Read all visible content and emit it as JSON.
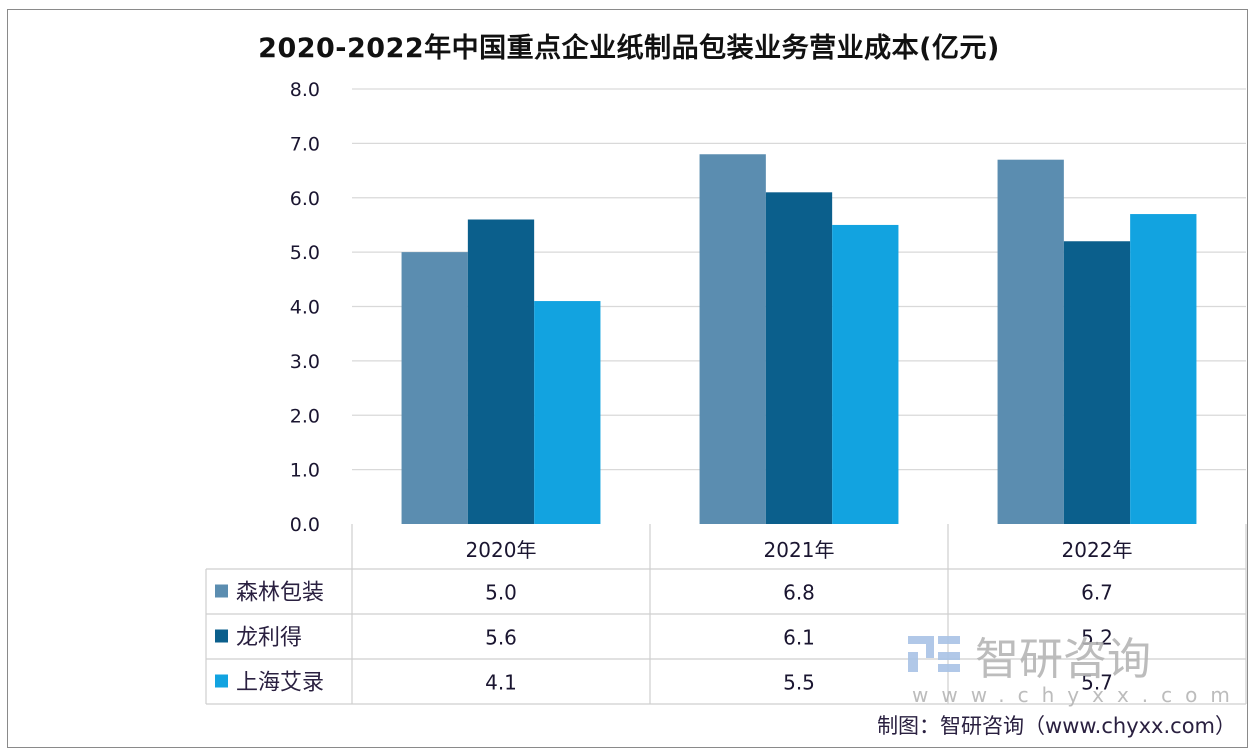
{
  "chart_data": {
    "type": "bar",
    "title": "2020-2022年中国重点企业纸制品包装业务营业成本(亿元)",
    "xlabel": "",
    "ylabel": "",
    "ylim": [
      0,
      8
    ],
    "yticks": [
      "0.0",
      "1.0",
      "2.0",
      "3.0",
      "4.0",
      "5.0",
      "6.0",
      "7.0",
      "8.0"
    ],
    "grid": true,
    "legend": "table-bottom",
    "categories": [
      "2020年",
      "2021年",
      "2022年"
    ],
    "series": [
      {
        "name": "森林包装",
        "color": "#5b8db0",
        "values": [
          5.0,
          6.8,
          6.7
        ],
        "labels": [
          "5.0",
          "6.8",
          "6.7"
        ]
      },
      {
        "name": "龙利得",
        "color": "#0b5f8c",
        "values": [
          5.6,
          6.1,
          5.2
        ],
        "labels": [
          "5.6",
          "6.1",
          "5.2"
        ]
      },
      {
        "name": "上海艾录",
        "color": "#12a3e0",
        "values": [
          4.1,
          5.5,
          5.7
        ],
        "labels": [
          "4.1",
          "5.5",
          "5.7"
        ]
      }
    ]
  },
  "watermark": {
    "brand": "智研咨询",
    "url": "www.chyxx.com"
  },
  "credit": "制图：智研咨询（www.chyxx.com）"
}
